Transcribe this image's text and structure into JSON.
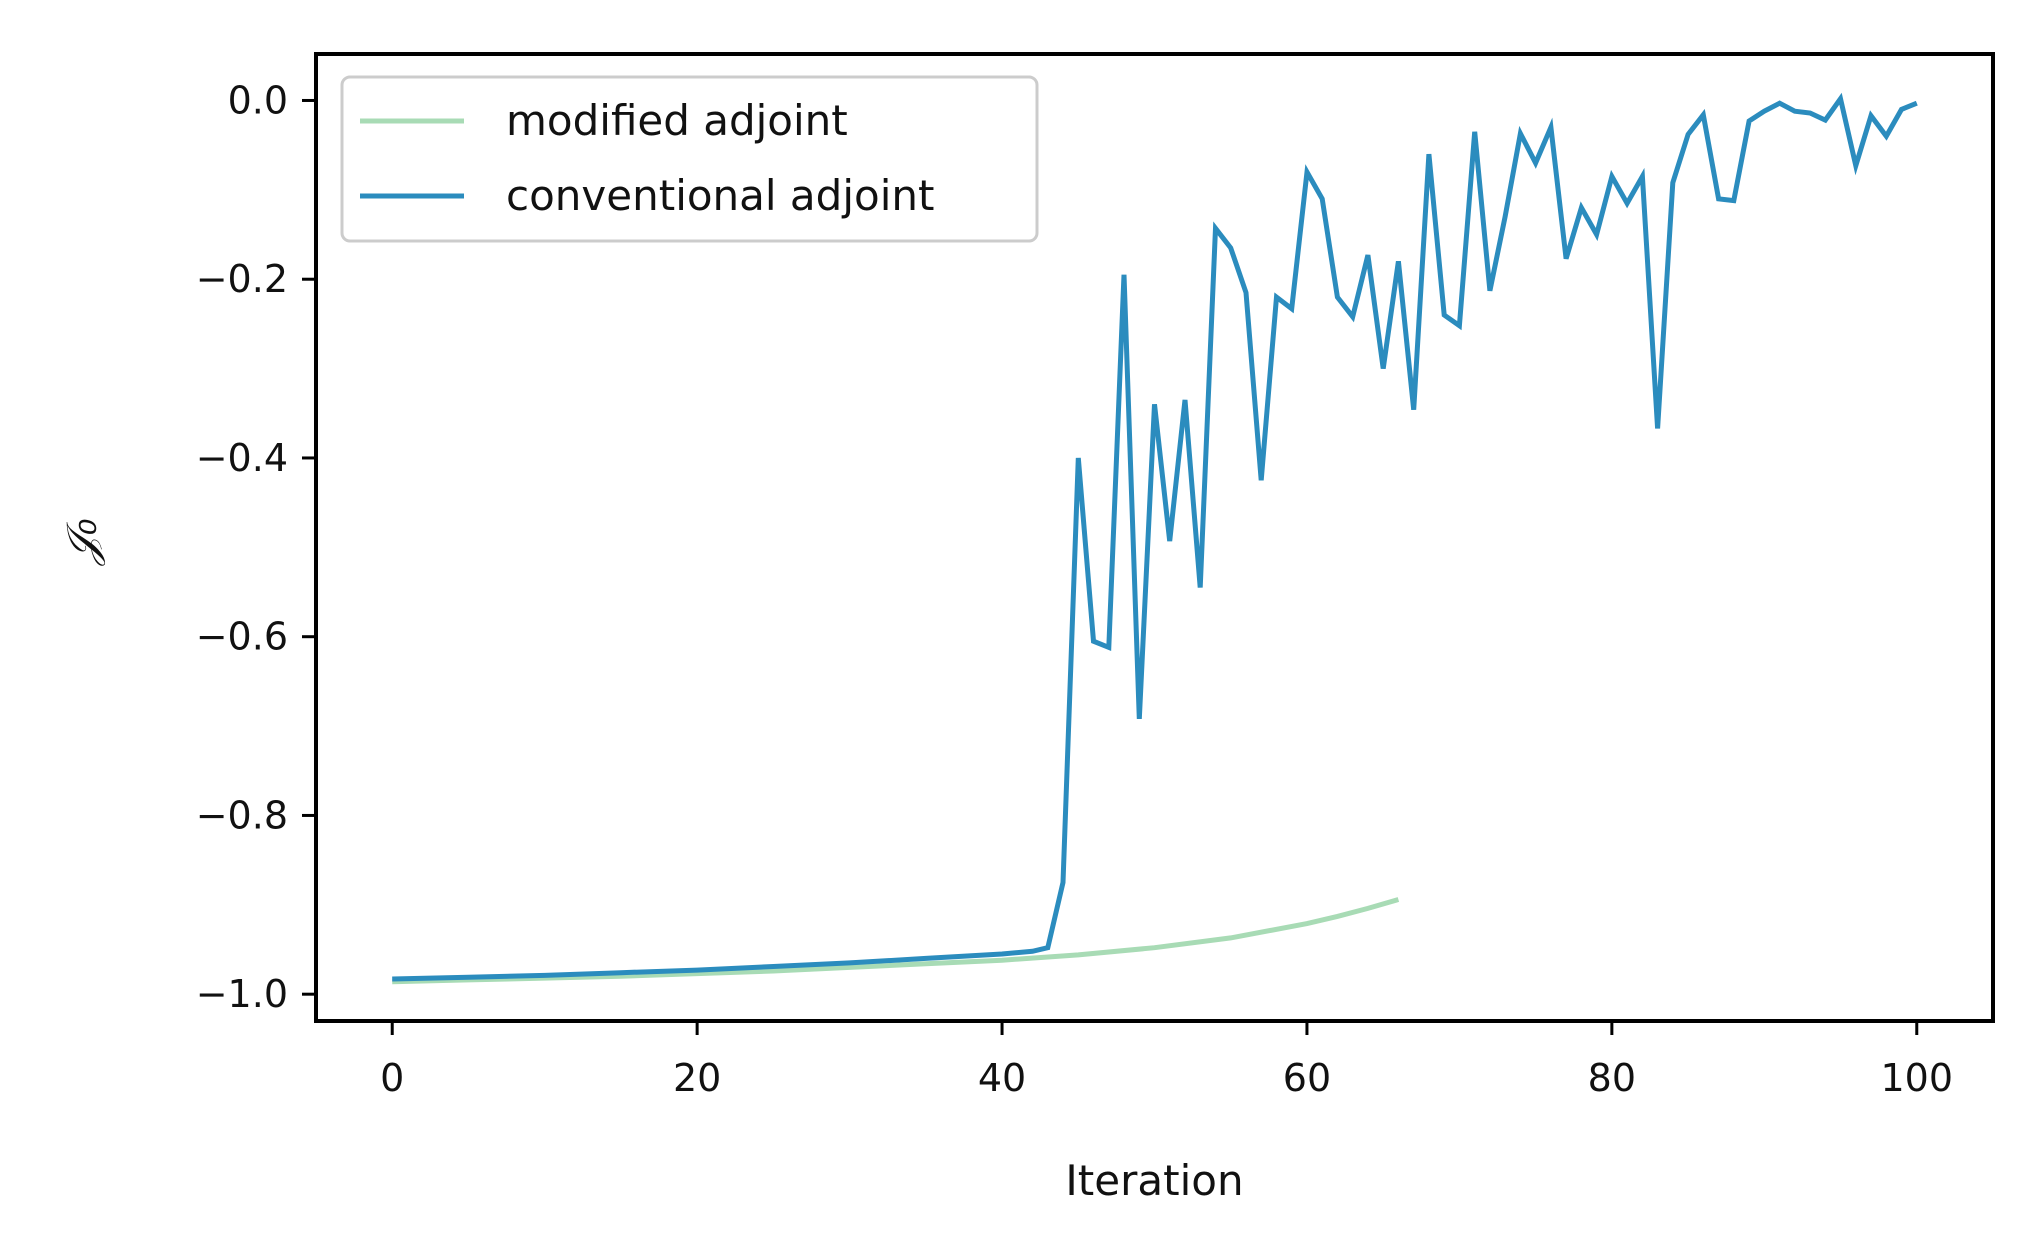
{
  "chart_data": {
    "type": "line",
    "xlabel": "Iteration",
    "ylabel": "𝒥₀",
    "xlim": [
      -5,
      105
    ],
    "ylim": [
      -1.03,
      0.052
    ],
    "xticks": [
      0,
      20,
      40,
      60,
      80,
      100
    ],
    "xtick_labels": [
      "0",
      "20",
      "40",
      "60",
      "80",
      "100"
    ],
    "yticks": [
      0.0,
      -0.2,
      -0.4,
      -0.6,
      -0.8,
      -1.0
    ],
    "ytick_labels": [
      "0.0",
      "−0.2",
      "−0.4",
      "−0.6",
      "−0.8",
      "−1.0"
    ],
    "grid": false,
    "legend_position": "top-left",
    "series": [
      {
        "name": "modified adjoint",
        "color": "#a8dbb5",
        "x": [
          0,
          5,
          10,
          15,
          20,
          25,
          30,
          35,
          40,
          45,
          50,
          55,
          60,
          62,
          64,
          66
        ],
        "y": [
          -0.986,
          -0.984,
          -0.982,
          -0.98,
          -0.977,
          -0.974,
          -0.97,
          -0.966,
          -0.962,
          -0.956,
          -0.948,
          -0.937,
          -0.921,
          -0.913,
          -0.904,
          -0.894
        ]
      },
      {
        "name": "conventional adjoint",
        "color": "#2b8cbe",
        "x": [
          0,
          5,
          10,
          15,
          20,
          25,
          30,
          35,
          40,
          42,
          43,
          44,
          45,
          46,
          47,
          48,
          49,
          50,
          51,
          52,
          53,
          54,
          55,
          56,
          57,
          58,
          59,
          60,
          61,
          62,
          63,
          64,
          65,
          66,
          67,
          68,
          69,
          70,
          71,
          72,
          73,
          74,
          75,
          76,
          77,
          78,
          79,
          80,
          81,
          82,
          83,
          84,
          85,
          86,
          87,
          88,
          89,
          90,
          91,
          92,
          93,
          94,
          95,
          96,
          97,
          98,
          99,
          100
        ],
        "y": [
          -0.983,
          -0.981,
          -0.979,
          -0.976,
          -0.973,
          -0.969,
          -0.965,
          -0.96,
          -0.955,
          -0.952,
          -0.948,
          -0.875,
          -0.4,
          -0.605,
          -0.612,
          -0.195,
          -0.692,
          -0.34,
          -0.493,
          -0.335,
          -0.545,
          -0.143,
          -0.165,
          -0.215,
          -0.425,
          -0.22,
          -0.233,
          -0.08,
          -0.11,
          -0.22,
          -0.242,
          -0.173,
          -0.3,
          -0.18,
          -0.346,
          -0.06,
          -0.24,
          -0.252,
          -0.035,
          -0.213,
          -0.13,
          -0.037,
          -0.07,
          -0.03,
          -0.177,
          -0.12,
          -0.15,
          -0.085,
          -0.115,
          -0.085,
          -0.367,
          -0.092,
          -0.038,
          -0.016,
          -0.11,
          -0.112,
          -0.023,
          -0.012,
          -0.003,
          -0.012,
          -0.014,
          -0.022,
          0.002,
          -0.073,
          -0.017,
          -0.04,
          -0.01,
          -0.003
        ]
      }
    ]
  }
}
